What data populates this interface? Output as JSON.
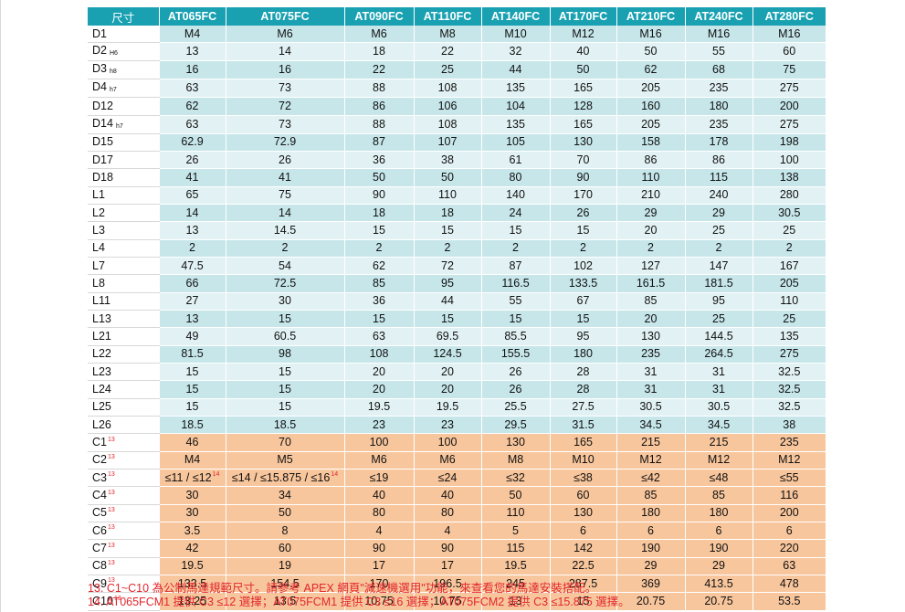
{
  "table": {
    "corner_label": "尺寸",
    "columns": [
      "AT065FC",
      "AT075FC",
      "AT090FC",
      "AT110FC",
      "AT140FC",
      "AT170FC",
      "AT210FC",
      "AT240FC",
      "AT280FC"
    ],
    "rows": [
      {
        "label": "D1",
        "sub": "",
        "sup": "",
        "values": [
          "M4",
          "M6",
          "M6",
          "M8",
          "M10",
          "M12",
          "M16",
          "M16",
          "M16"
        ]
      },
      {
        "label": "D2",
        "sub": "H6",
        "sup": "",
        "values": [
          "13",
          "14",
          "18",
          "22",
          "32",
          "40",
          "50",
          "55",
          "60"
        ]
      },
      {
        "label": "D3",
        "sub": "h8",
        "sup": "",
        "values": [
          "16",
          "16",
          "22",
          "25",
          "44",
          "50",
          "62",
          "68",
          "75"
        ]
      },
      {
        "label": "D4",
        "sub": "h7",
        "sup": "",
        "values": [
          "63",
          "73",
          "88",
          "108",
          "135",
          "165",
          "205",
          "235",
          "275"
        ]
      },
      {
        "label": "D12",
        "sub": "",
        "sup": "",
        "values": [
          "62",
          "72",
          "86",
          "106",
          "104",
          "128",
          "160",
          "180",
          "200"
        ]
      },
      {
        "label": "D14",
        "sub": "h7",
        "sup": "",
        "values": [
          "63",
          "73",
          "88",
          "108",
          "135",
          "165",
          "205",
          "235",
          "275"
        ]
      },
      {
        "label": "D15",
        "sub": "",
        "sup": "",
        "values": [
          "62.9",
          "72.9",
          "87",
          "107",
          "105",
          "130",
          "158",
          "178",
          "198"
        ]
      },
      {
        "label": "D17",
        "sub": "",
        "sup": "",
        "values": [
          "26",
          "26",
          "36",
          "38",
          "61",
          "70",
          "86",
          "86",
          "100"
        ]
      },
      {
        "label": "D18",
        "sub": "",
        "sup": "",
        "values": [
          "41",
          "41",
          "50",
          "50",
          "80",
          "90",
          "110",
          "115",
          "138"
        ]
      },
      {
        "label": "L1",
        "sub": "",
        "sup": "",
        "values": [
          "65",
          "75",
          "90",
          "110",
          "140",
          "170",
          "210",
          "240",
          "280"
        ]
      },
      {
        "label": "L2",
        "sub": "",
        "sup": "",
        "values": [
          "14",
          "14",
          "18",
          "18",
          "24",
          "26",
          "29",
          "29",
          "30.5"
        ]
      },
      {
        "label": "L3",
        "sub": "",
        "sup": "",
        "values": [
          "13",
          "14.5",
          "15",
          "15",
          "15",
          "15",
          "20",
          "25",
          "25"
        ]
      },
      {
        "label": "L4",
        "sub": "",
        "sup": "",
        "values": [
          "2",
          "2",
          "2",
          "2",
          "2",
          "2",
          "2",
          "2",
          "2"
        ]
      },
      {
        "label": "L7",
        "sub": "",
        "sup": "",
        "values": [
          "47.5",
          "54",
          "62",
          "72",
          "87",
          "102",
          "127",
          "147",
          "167"
        ]
      },
      {
        "label": "L8",
        "sub": "",
        "sup": "",
        "values": [
          "66",
          "72.5",
          "85",
          "95",
          "116.5",
          "133.5",
          "161.5",
          "181.5",
          "205"
        ]
      },
      {
        "label": "L11",
        "sub": "",
        "sup": "",
        "values": [
          "27",
          "30",
          "36",
          "44",
          "55",
          "67",
          "85",
          "95",
          "110"
        ]
      },
      {
        "label": "L13",
        "sub": "",
        "sup": "",
        "values": [
          "13",
          "15",
          "15",
          "15",
          "15",
          "15",
          "20",
          "25",
          "25"
        ]
      },
      {
        "label": "L21",
        "sub": "",
        "sup": "",
        "values": [
          "49",
          "60.5",
          "63",
          "69.5",
          "85.5",
          "95",
          "130",
          "144.5",
          "135"
        ]
      },
      {
        "label": "L22",
        "sub": "",
        "sup": "",
        "values": [
          "81.5",
          "98",
          "108",
          "124.5",
          "155.5",
          "180",
          "235",
          "264.5",
          "275"
        ]
      },
      {
        "label": "L23",
        "sub": "",
        "sup": "",
        "values": [
          "15",
          "15",
          "20",
          "20",
          "26",
          "28",
          "31",
          "31",
          "32.5"
        ]
      },
      {
        "label": "L24",
        "sub": "",
        "sup": "",
        "values": [
          "15",
          "15",
          "20",
          "20",
          "26",
          "28",
          "31",
          "31",
          "32.5"
        ]
      },
      {
        "label": "L25",
        "sub": "",
        "sup": "",
        "values": [
          "15",
          "15",
          "19.5",
          "19.5",
          "25.5",
          "27.5",
          "30.5",
          "30.5",
          "32.5"
        ]
      },
      {
        "label": "L26",
        "sub": "",
        "sup": "",
        "values": [
          "18.5",
          "18.5",
          "23",
          "23",
          "29.5",
          "31.5",
          "34.5",
          "34.5",
          "38"
        ]
      },
      {
        "label": "C1",
        "sub": "",
        "sup": "13",
        "values": [
          "46",
          "70",
          "100",
          "100",
          "130",
          "165",
          "215",
          "215",
          "235"
        ]
      },
      {
        "label": "C2",
        "sub": "",
        "sup": "13",
        "values": [
          "M4",
          "M5",
          "M6",
          "M6",
          "M8",
          "M10",
          "M12",
          "M12",
          "M12"
        ]
      },
      {
        "label": "C3",
        "sub": "",
        "sup": "13",
        "values": [
          "≤11 / ≤12",
          "≤14 / ≤15.875 / ≤16",
          "≤19",
          "≤24",
          "≤32",
          "≤38",
          "≤42",
          "≤48",
          "≤55"
        ],
        "value_sups": [
          "14",
          "14",
          "",
          "",
          "",
          "",
          "",
          "",
          ""
        ]
      },
      {
        "label": "C4",
        "sub": "",
        "sup": "13",
        "values": [
          "30",
          "34",
          "40",
          "40",
          "50",
          "60",
          "85",
          "85",
          "116"
        ]
      },
      {
        "label": "C5",
        "sub": "",
        "sup": "13",
        "values": [
          "30",
          "50",
          "80",
          "80",
          "110",
          "130",
          "180",
          "180",
          "200"
        ]
      },
      {
        "label": "C6",
        "sub": "",
        "sup": "13",
        "values": [
          "3.5",
          "8",
          "4",
          "4",
          "5",
          "6",
          "6",
          "6",
          "6"
        ]
      },
      {
        "label": "C7",
        "sub": "",
        "sup": "13",
        "values": [
          "42",
          "60",
          "90",
          "90",
          "115",
          "142",
          "190",
          "190",
          "220"
        ]
      },
      {
        "label": "C8",
        "sub": "",
        "sup": "13",
        "values": [
          "19.5",
          "19",
          "17",
          "17",
          "19.5",
          "22.5",
          "29",
          "29",
          "63"
        ]
      },
      {
        "label": "C9",
        "sub": "",
        "sup": "13",
        "values": [
          "133.5",
          "154.5",
          "170",
          "196.5",
          "245",
          "287.5",
          "369",
          "413.5",
          "478"
        ]
      },
      {
        "label": "C10",
        "sub": "",
        "sup": "13",
        "values": [
          "13.25",
          "13.5",
          "10.75",
          "10.75",
          "13",
          "15",
          "20.75",
          "20.75",
          "53.5"
        ]
      }
    ]
  },
  "colors": {
    "header": "#19a1b2",
    "row_alt_a": "#c6e6ea",
    "row_alt_b": "#e2f2f4",
    "c_section": "#f8c69c",
    "note_red": "#e2272e"
  },
  "notes": [
    "13. C1~C10 為公制馬達規範尺寸。請參考 APEX 網頁\"減速機選用\"功能，來查看您的馬達安裝搭配。",
    "14. AT065FCM1 提供 C3 ≤12 選擇；AT075FCM1 提供 C3 ≤16 選擇；AT075FCM2 提供 C3 ≤15.875 選擇。"
  ]
}
